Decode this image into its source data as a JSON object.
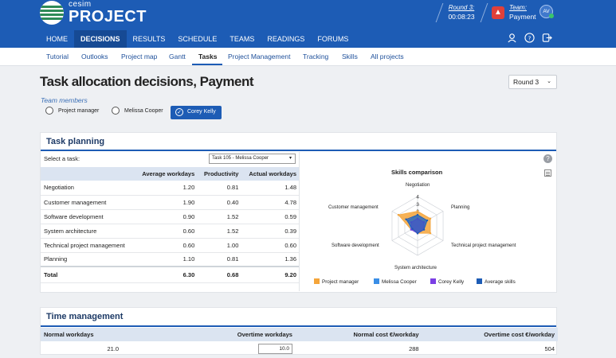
{
  "brand": {
    "top": "cesim",
    "name": "PROJECT"
  },
  "round_info": {
    "label": "Round 3:",
    "timer": "00:08:23"
  },
  "team_info": {
    "label": "Team:",
    "name": "Payment",
    "avatar": "AV"
  },
  "nav": {
    "items": [
      "HOME",
      "DECISIONS",
      "RESULTS",
      "SCHEDULE",
      "TEAMS",
      "READINGS",
      "FORUMS"
    ],
    "active": "DECISIONS"
  },
  "nav_icons": [
    "user-icon",
    "help-icon",
    "logout-icon"
  ],
  "subnav": {
    "items": [
      "Tutorial",
      "Outlooks",
      "Project map",
      "Gantt",
      "Tasks",
      "Project Management",
      "Tracking",
      "Skills",
      "All projects"
    ],
    "active": "Tasks"
  },
  "page": {
    "title": "Task allocation decisions, Payment",
    "round_select": "Round 3"
  },
  "team_members": {
    "label": "Team members",
    "members": [
      {
        "name": "Project manager",
        "selected": false
      },
      {
        "name": "Melissa Cooper",
        "selected": false
      },
      {
        "name": "Corey Kelly",
        "selected": true
      }
    ]
  },
  "task_planning": {
    "title": "Task planning",
    "select_label": "Select a task:",
    "selected_task": "Task 105 - Melissa Cooper",
    "columns": [
      "",
      "Average workdays",
      "Productivity",
      "Actual workdays"
    ],
    "rows": [
      [
        "Negotiation",
        "1.20",
        "0.81",
        "1.48"
      ],
      [
        "Customer management",
        "1.90",
        "0.40",
        "4.78"
      ],
      [
        "Software development",
        "0.90",
        "1.52",
        "0.59"
      ],
      [
        "System architecture",
        "0.60",
        "1.52",
        "0.39"
      ],
      [
        "Technical project management",
        "0.60",
        "1.00",
        "0.60"
      ],
      [
        "Planning",
        "1.10",
        "0.81",
        "1.36"
      ]
    ],
    "total": [
      "Total",
      "6.30",
      "0.68",
      "9.20"
    ]
  },
  "chart_data": {
    "type": "radar",
    "title": "Skills comparison",
    "axes": [
      "Negotiation",
      "Planning",
      "Technical project management",
      "System architecture",
      "Software development",
      "Customer management"
    ],
    "tick_labels": [
      "1",
      "2",
      "3",
      "4"
    ],
    "range": [
      0,
      4
    ],
    "series": [
      {
        "name": "Project manager",
        "color": "#f5a53a",
        "values": [
          2,
          2,
          2,
          1,
          1,
          3
        ]
      },
      {
        "name": "Melissa Cooper",
        "color": "#3a8ee6",
        "values": [
          1.5,
          1.5,
          1,
          1,
          1,
          1.5
        ]
      },
      {
        "name": "Corey Kelly",
        "color": "#7b3fe4",
        "values": [
          1,
          1,
          1,
          1,
          1,
          1
        ]
      },
      {
        "name": "Average skills",
        "color": "#1d5cb5",
        "values": [
          1.5,
          1.5,
          1,
          1,
          0.8,
          1.8
        ]
      }
    ]
  },
  "time_management": {
    "title": "Time management",
    "columns": [
      "Normal workdays",
      "Overtime workdays",
      "Normal cost €/workday",
      "Overtime cost €/workday"
    ],
    "values": [
      "21.0",
      "10.0",
      "288",
      "504"
    ]
  },
  "colors": {
    "brand_blue": "#1d5cb5",
    "header_blue": "#dbe4f1",
    "alert": "#e0403a"
  }
}
